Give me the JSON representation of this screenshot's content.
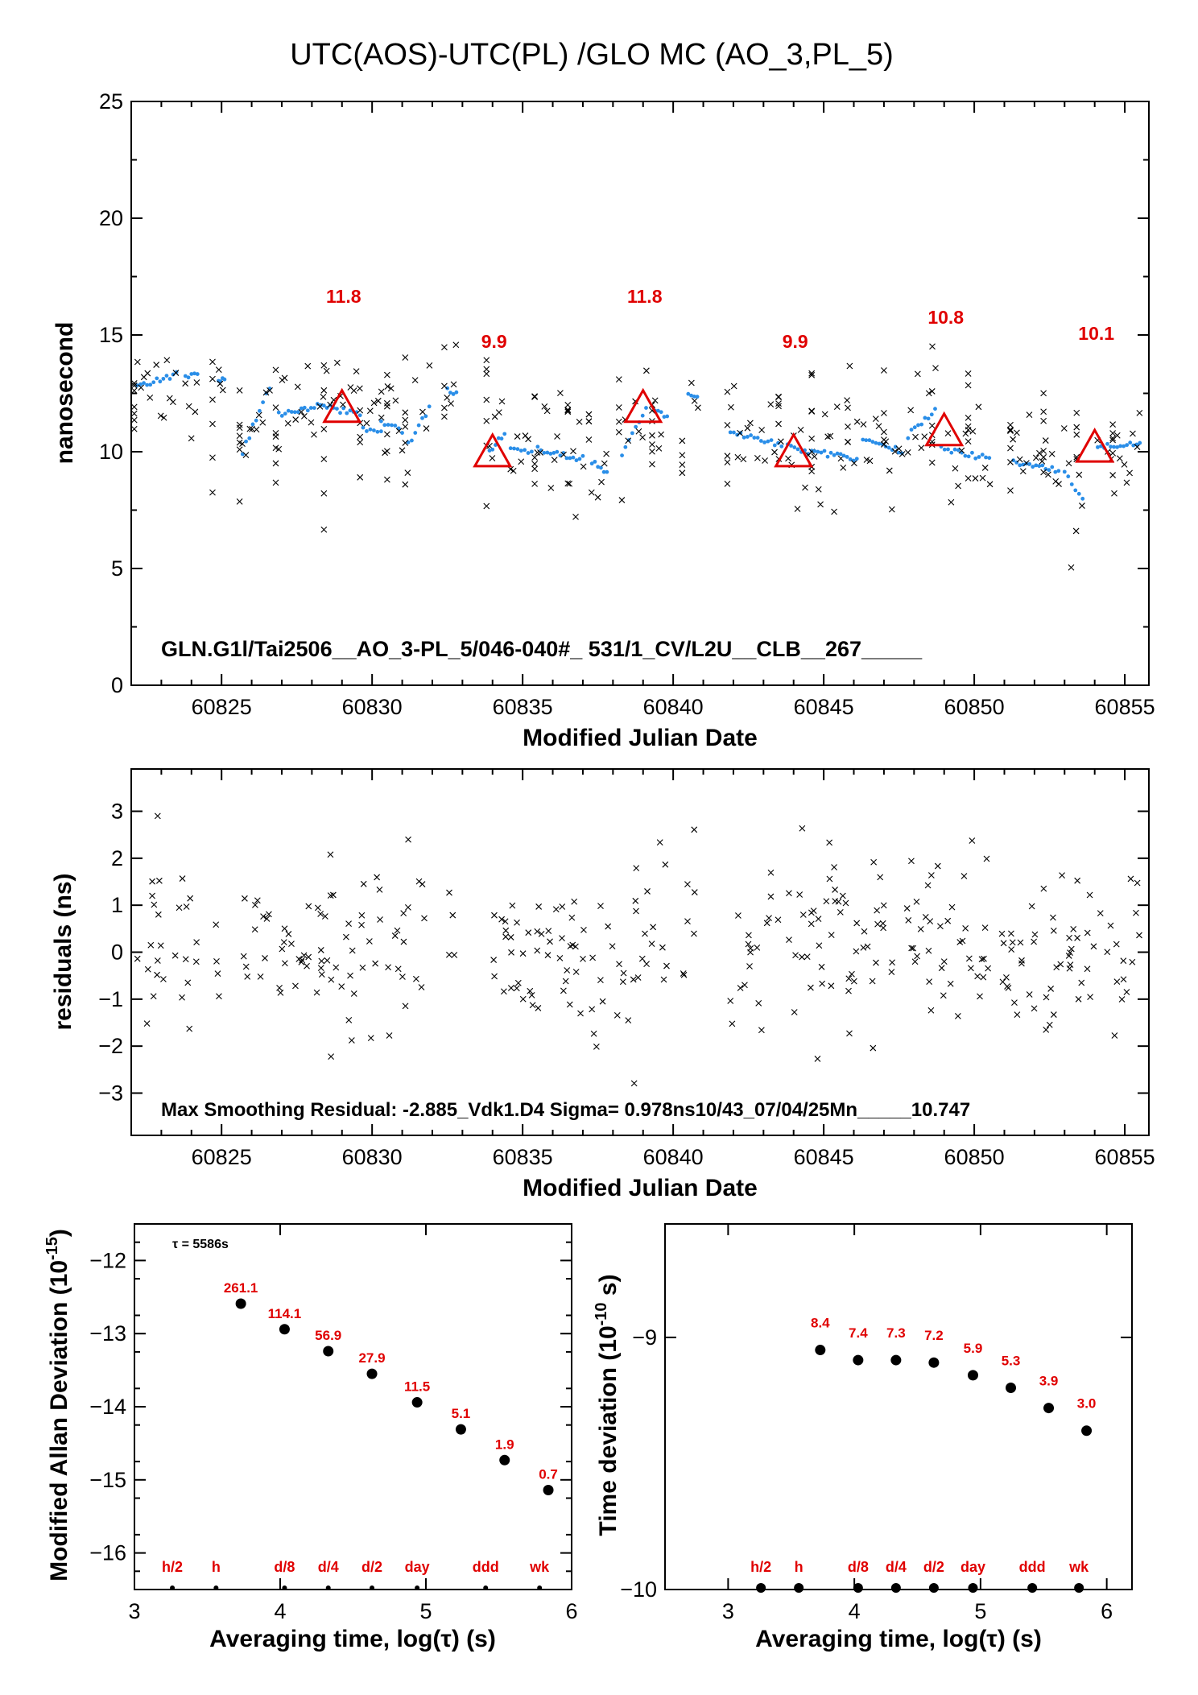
{
  "figure": {
    "title": "UTC(AOS)-UTC(PL)  /GLO  MC  (AO_3,PL_5)"
  },
  "chart_data": [
    {
      "type": "scatter",
      "id": "top",
      "xlabel": "Modified Julian Date",
      "ylabel": "nanosecond",
      "xlim": [
        60822,
        60855.8
      ],
      "ylim": [
        0,
        25
      ],
      "x_ticks": [
        60825,
        60830,
        60835,
        60840,
        60845,
        60850,
        60855
      ],
      "y_ticks": [
        0,
        5,
        10,
        15,
        20,
        25
      ],
      "annotation": "GLN.G1l/Tai2506__AO_3-PL_5/046-040#_  531/1_CV/L2U__CLB__267_____",
      "colors": {
        "raw": "#000000",
        "smoothed": "#2a8ee8",
        "daily": "#e00000"
      },
      "daily_means": {
        "x": [
          60829,
          60834,
          60839,
          60844,
          60849,
          60854
        ],
        "y": [
          11.8,
          9.9,
          11.8,
          9.9,
          10.8,
          10.1
        ],
        "labels": [
          "11.8",
          "9.9",
          "11.8",
          "9.9",
          "10.8",
          "10.1"
        ]
      },
      "segments": [
        [
          60822.2,
          60823.5,
          12.8,
          13.3
        ],
        [
          60823.8,
          60824.2,
          13.2,
          13.4
        ],
        [
          60824.9,
          60825.1,
          13.0,
          13.2
        ],
        [
          60825.7,
          60826.6,
          10.0,
          12.8
        ],
        [
          60826.9,
          60828.4,
          11.6,
          12.0
        ],
        [
          60828.5,
          60829.6,
          11.9,
          11.6
        ],
        [
          60829.7,
          60830.3,
          11.0,
          10.8
        ],
        [
          60830.3,
          60831.0,
          11.2,
          10.9
        ],
        [
          60831.2,
          60831.9,
          10.3,
          11.9
        ],
        [
          60832.5,
          60832.8,
          12.7,
          12.5
        ],
        [
          60833.9,
          60834.4,
          10.0,
          10.8
        ],
        [
          60834.6,
          60835.3,
          10.2,
          9.9
        ],
        [
          60835.5,
          60837.0,
          10.1,
          9.7
        ],
        [
          60837.3,
          60837.8,
          9.6,
          9.1
        ],
        [
          60838.3,
          60839.1,
          9.8,
          11.9
        ],
        [
          60839.4,
          60839.8,
          11.8,
          11.4
        ],
        [
          60840.5,
          60840.8,
          12.6,
          12.3
        ],
        [
          60841.9,
          60843.6,
          10.8,
          10.3
        ],
        [
          60843.8,
          60844.6,
          10.2,
          10.0
        ],
        [
          60844.7,
          60846.1,
          10.0,
          9.7
        ],
        [
          60846.3,
          60847.6,
          10.6,
          10.0
        ],
        [
          60847.8,
          60848.7,
          10.7,
          11.8
        ],
        [
          60848.9,
          60850.5,
          10.1,
          9.7
        ],
        [
          60851.3,
          60852.8,
          9.6,
          9.2
        ],
        [
          60853.0,
          60853.6,
          9.1,
          7.9
        ],
        [
          60854.1,
          60855.5,
          10.2,
          10.3
        ]
      ]
    },
    {
      "type": "scatter",
      "id": "residuals",
      "xlabel": "Modified Julian Date",
      "ylabel": "residuals (ns)",
      "xlim": [
        60822,
        60855.8
      ],
      "ylim": [
        -3.9,
        3.9
      ],
      "x_ticks": [
        60825,
        60830,
        60835,
        60840,
        60845,
        60850,
        60855
      ],
      "y_ticks": [
        -3,
        -2,
        -1,
        0,
        1,
        2,
        3
      ],
      "y_tick_labels": [
        "−3",
        "−2",
        "−1",
        "0",
        "1",
        "2",
        "3"
      ],
      "annotation": "Max Smoothing Residual: -2.885_Vdk1.D4  Sigma= 0.978ns10/43_07/04/25Mn_____10.747"
    },
    {
      "type": "scatter",
      "id": "mdev",
      "xlabel": "Averaging time, log(τ) (s)",
      "ylabel": "Modified Allan Deviation (10",
      "ylabel_exp": "-15",
      "ylabel_tail": ")",
      "xlim": [
        3,
        6
      ],
      "ylim": [
        -16.5,
        -11.5
      ],
      "x_ticks": [
        3,
        4,
        5,
        6
      ],
      "y_ticks": [
        -16,
        -15,
        -14,
        -13,
        -12
      ],
      "y_tick_labels": [
        "−16",
        "−15",
        "−14",
        "−13",
        "−12"
      ],
      "tau_note": "τ = 5586s",
      "points": {
        "x": [
          3.73,
          4.03,
          4.33,
          4.63,
          4.94,
          5.24,
          5.54,
          5.84
        ],
        "y": [
          -12.59,
          -12.94,
          -13.24,
          -13.55,
          -13.94,
          -14.31,
          -14.73,
          -15.14
        ],
        "labels": [
          "261.1",
          "114.1",
          "56.9",
          "27.9",
          "11.5",
          "5.1",
          "1.9",
          "0.7"
        ]
      },
      "markers": {
        "x": [
          3.26,
          3.56,
          4.03,
          4.33,
          4.63,
          4.94,
          5.41,
          5.78
        ],
        "labels": [
          "h/2",
          "h",
          "d/8",
          "d/4",
          "d/2",
          "day",
          "ddd",
          "wk"
        ]
      }
    },
    {
      "type": "scatter",
      "id": "tdev",
      "xlabel": "Averaging time, log(τ) (s)",
      "ylabel": "Time deviation (10",
      "ylabel_exp": "-10",
      "ylabel_tail": " s)",
      "xlim": [
        2.5,
        6.2
      ],
      "ylim": [
        -10,
        -8.55
      ],
      "x_ticks": [
        3,
        4,
        5,
        6
      ],
      "y_ticks": [
        -10,
        -9
      ],
      "y_tick_labels": [
        "−10",
        "−9"
      ],
      "points": {
        "x": [
          3.73,
          4.03,
          4.33,
          4.63,
          4.94,
          5.24,
          5.54,
          5.84
        ],
        "y": [
          -9.05,
          -9.09,
          -9.09,
          -9.1,
          -9.15,
          -9.2,
          -9.28,
          -9.37
        ],
        "labels": [
          "8.4",
          "7.4",
          "7.3",
          "7.2",
          "5.9",
          "5.3",
          "3.9",
          "3.0"
        ]
      },
      "markers": {
        "x": [
          3.26,
          3.56,
          4.03,
          4.33,
          4.63,
          4.94,
          5.41,
          5.78
        ],
        "labels": [
          "h/2",
          "h",
          "d/8",
          "d/4",
          "d/2",
          "day",
          "ddd",
          "wk"
        ]
      }
    }
  ]
}
